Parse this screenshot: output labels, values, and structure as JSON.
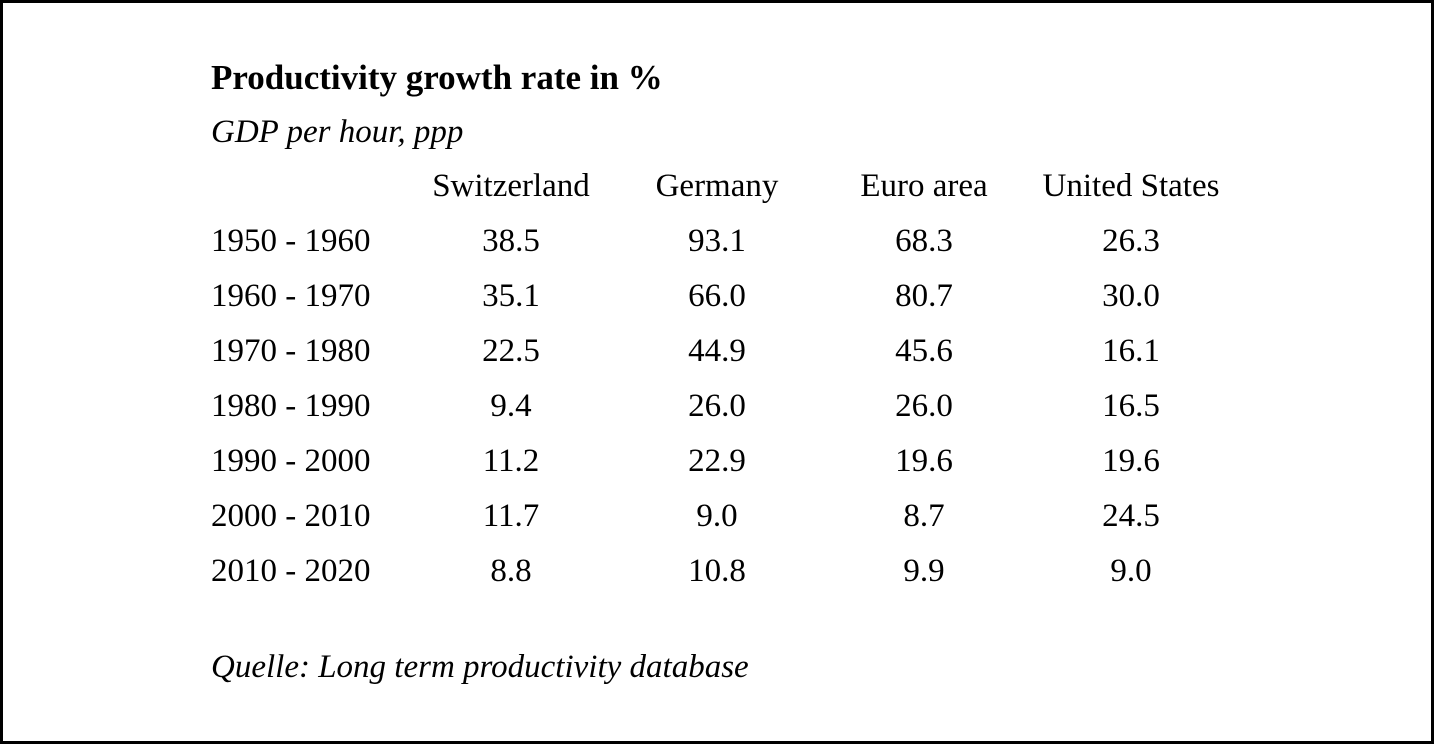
{
  "page": {
    "background": "#ffffff",
    "border_color": "#000000",
    "text_color": "#000000"
  },
  "chart_data": {
    "type": "table",
    "title": "Productivity growth rate in %",
    "subtitle": "GDP per hour, ppp",
    "source": "Quelle: Long term productivity database",
    "unit": "%",
    "columns": [
      "",
      "Switzerland",
      "Germany",
      "Euro area",
      "United States"
    ],
    "rows": [
      {
        "period": "1950 - 1960",
        "values": [
          "38.5",
          "93.1",
          "68.3",
          "26.3"
        ]
      },
      {
        "period": "1960 - 1970",
        "values": [
          "35.1",
          "66.0",
          "80.7",
          "30.0"
        ]
      },
      {
        "period": "1970 - 1980",
        "values": [
          "22.5",
          "44.9",
          "45.6",
          "16.1"
        ]
      },
      {
        "period": "1980 - 1990",
        "values": [
          "9.4",
          "26.0",
          "26.0",
          "16.5"
        ]
      },
      {
        "period": "1990 - 2000",
        "values": [
          "11.2",
          "22.9",
          "19.6",
          "19.6"
        ]
      },
      {
        "period": "2000 - 2010",
        "values": [
          "11.7",
          "9.0",
          "8.7",
          "24.5"
        ]
      },
      {
        "period": "2010 - 2020",
        "values": [
          "8.8",
          "10.8",
          "9.9",
          "9.0"
        ]
      }
    ]
  }
}
